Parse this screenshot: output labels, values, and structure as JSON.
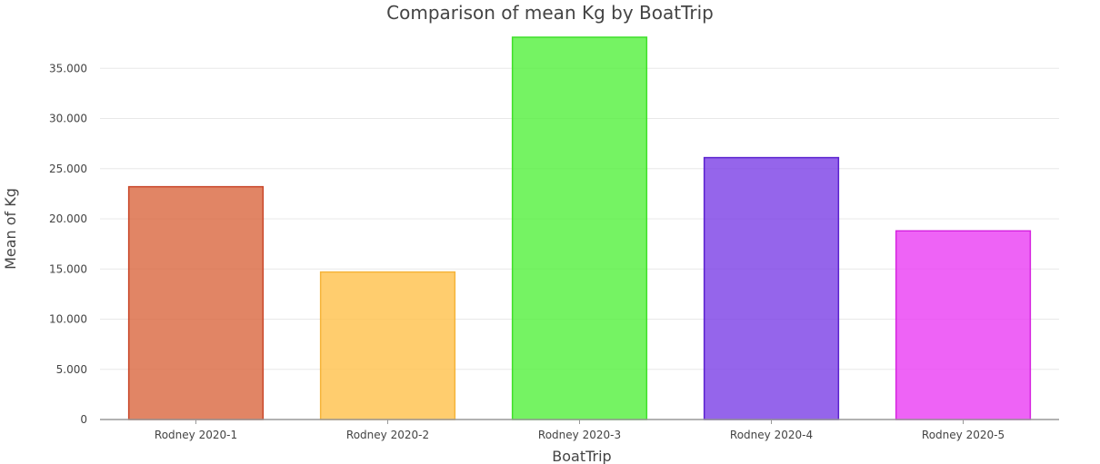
{
  "chart_data": {
    "type": "bar",
    "title": "Comparison of mean Kg by BoatTrip",
    "xlabel": "BoatTrip",
    "ylabel": "Mean of Kg",
    "categories": [
      "Rodney 2020-1",
      "Rodney 2020-2",
      "Rodney 2020-3",
      "Rodney 2020-4",
      "Rodney 2020-5"
    ],
    "values": [
      23.2,
      14.7,
      38.1,
      26.1,
      18.8
    ],
    "ylim": [
      0,
      38.1
    ],
    "yticks": [
      0,
      5,
      10,
      15,
      20,
      25,
      30,
      35
    ],
    "ytick_labels": [
      "0",
      "5.000",
      "10.000",
      "15.000",
      "20.000",
      "25.000",
      "30.000",
      "35.000"
    ],
    "grid": true,
    "legend": "none",
    "colors": [
      {
        "fill": "#d9663e",
        "stroke": "#c9472a"
      },
      {
        "fill": "#ffc04a",
        "stroke": "#f5b43a"
      },
      {
        "fill": "#52f03c",
        "stroke": "#3fe02a"
      },
      {
        "fill": "#7a3fe6",
        "stroke": "#5a22cf"
      },
      {
        "fill": "#ea3cf4",
        "stroke": "#d625e0"
      }
    ]
  }
}
